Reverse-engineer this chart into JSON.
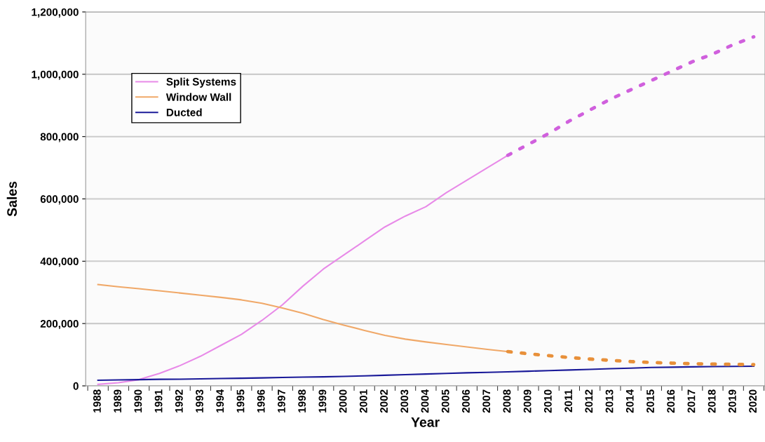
{
  "chart_data": {
    "type": "line",
    "xlabel": "Year",
    "ylabel": "Sales",
    "categories": [
      "1988",
      "1989",
      "1990",
      "1991",
      "1992",
      "1993",
      "1994",
      "1995",
      "1996",
      "1997",
      "1998",
      "1999",
      "2000",
      "2001",
      "2002",
      "2003",
      "2004",
      "2005",
      "2006",
      "2007",
      "2008",
      "2009",
      "2010",
      "2011",
      "2012",
      "2013",
      "2014",
      "2015",
      "2016",
      "2017",
      "2018",
      "2019",
      "2020"
    ],
    "series": [
      {
        "name": "Split Systems",
        "color": "#e88ae8",
        "line_style": "solid",
        "values": [
          5000,
          10000,
          20000,
          40000,
          65000,
          95000,
          130000,
          165000,
          210000,
          260000,
          320000,
          375000,
          420000,
          465000,
          510000,
          545000,
          575000,
          620000,
          660000,
          700000,
          740000,
          null,
          null,
          null,
          null,
          null,
          null,
          null,
          null,
          null,
          null,
          null,
          null
        ]
      },
      {
        "name": "Window Wall",
        "color": "#f0a868",
        "line_style": "solid",
        "values": [
          325000,
          318000,
          312000,
          305000,
          298000,
          291000,
          284000,
          276000,
          265000,
          250000,
          233000,
          213000,
          195000,
          178000,
          162000,
          150000,
          141000,
          133000,
          125000,
          117000,
          110000,
          null,
          null,
          null,
          null,
          null,
          null,
          null,
          null,
          null,
          null,
          null,
          null
        ]
      },
      {
        "name": "Ducted",
        "color": "#1a1a99",
        "line_style": "solid",
        "values": [
          18000,
          19000,
          20000,
          21000,
          21500,
          22500,
          23500,
          24500,
          25500,
          27000,
          28000,
          29000,
          30500,
          32000,
          34000,
          36000,
          38000,
          40000,
          42000,
          43500,
          45000,
          47000,
          49000,
          51000,
          53000,
          55000,
          57000,
          59000,
          60000,
          61000,
          62000,
          62500,
          63000
        ]
      },
      {
        "color": "#d060dd",
        "line_style": "dotted",
        "values": [
          null,
          null,
          null,
          null,
          null,
          null,
          null,
          null,
          null,
          null,
          null,
          null,
          null,
          null,
          null,
          null,
          null,
          null,
          null,
          null,
          740000,
          775000,
          810000,
          850000,
          885000,
          920000,
          950000,
          980000,
          1010000,
          1040000,
          1065000,
          1095000,
          1120000
        ]
      },
      {
        "color": "#e8903a",
        "line_style": "dotted",
        "values": [
          null,
          null,
          null,
          null,
          null,
          null,
          null,
          null,
          null,
          null,
          null,
          null,
          null,
          null,
          null,
          null,
          null,
          null,
          null,
          null,
          110000,
          103000,
          97000,
          91000,
          86000,
          82000,
          78000,
          75000,
          73000,
          71000,
          70000,
          69000,
          68000
        ]
      }
    ],
    "ylim": [
      0,
      1200000
    ],
    "yticks": [
      {
        "value": 0,
        "label": "0"
      },
      {
        "value": 200000,
        "label": "200,000"
      },
      {
        "value": 400000,
        "label": "400,000"
      },
      {
        "value": 600000,
        "label": "600,000"
      },
      {
        "value": 800000,
        "label": "800,000"
      },
      {
        "value": 1000000,
        "label": "1,000,000"
      },
      {
        "value": 1200000,
        "label": "1,200,000"
      }
    ],
    "grid": "y",
    "legend": "top left",
    "marker": "none"
  }
}
